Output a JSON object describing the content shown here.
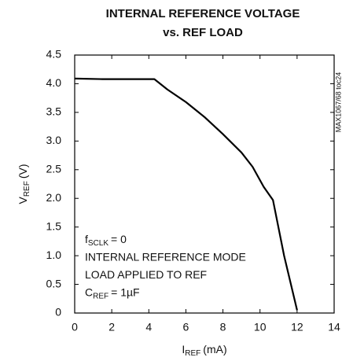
{
  "chart_data": {
    "type": "line",
    "title": [
      "INTERNAL REFERENCE VOLTAGE",
      "vs. REF LOAD"
    ],
    "xlabel": {
      "main": "I",
      "sub": "REF",
      "unit": "(mA)"
    },
    "ylabel": {
      "main": "V",
      "sub": "REF",
      "unit": "(V)"
    },
    "side_note": "MAX1067/68 toc24",
    "annotations": [
      {
        "main": "f",
        "sub": "SCLK",
        "rest": "= 0"
      },
      {
        "main": "INTERNAL REFERENCE MODE"
      },
      {
        "main": "LOAD APPLIED TO REF"
      },
      {
        "main": "C",
        "sub": "REF",
        "rest": "= 1µF"
      }
    ],
    "series": [
      {
        "name": "VREF",
        "color": "#000000",
        "x": [
          0,
          1.5,
          4.3,
          5,
          6,
          7,
          8,
          9,
          9.6,
          10.2,
          10.7,
          11.3,
          12
        ],
        "values": [
          4.09,
          4.08,
          4.08,
          3.9,
          3.68,
          3.42,
          3.12,
          2.8,
          2.55,
          2.2,
          1.97,
          1.0,
          0.05
        ]
      }
    ],
    "xlim": [
      0,
      14
    ],
    "xticks": [
      0,
      2,
      4,
      6,
      8,
      10,
      12,
      14
    ],
    "ylim": [
      0,
      4.5
    ],
    "yticks": [
      0,
      0.5,
      {
        "value": 1,
        "label": "1.0"
      },
      1.5,
      {
        "value": 2,
        "label": "2.0"
      },
      2.5,
      {
        "value": 3,
        "label": "3.0"
      },
      3.5,
      {
        "value": 4,
        "label": "4.0"
      },
      4.5
    ],
    "grid": false
  }
}
